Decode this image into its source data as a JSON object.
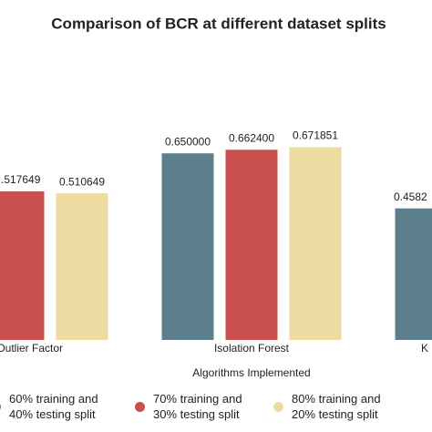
{
  "chart_data": {
    "type": "bar",
    "title": "Comparison of BCR at different dataset splits",
    "x_label": "Algorithms Implemented",
    "categories": [
      "Outlier Factor",
      "Isolation Forest",
      "K"
    ],
    "series": [
      {
        "name": "60% training and\n40% testing split",
        "color": "#5b7f8b",
        "values": [
          null,
          0.65,
          0.4582
        ],
        "value_labels": [
          null,
          "0.650000",
          "0.4582"
        ]
      },
      {
        "name": "70% training and\n30% testing split",
        "color": "#c9504f",
        "values": [
          0.517649,
          0.6624,
          null
        ],
        "value_labels": [
          ".517649",
          "0.662400",
          null
        ]
      },
      {
        "name": "80% training and\n20% testing split",
        "color": "#ecdca2",
        "values": [
          0.510649,
          0.671851,
          null
        ],
        "value_labels": [
          "0.510649",
          "0.671851",
          null
        ]
      }
    ],
    "ylim": [
      0,
      1
    ]
  }
}
